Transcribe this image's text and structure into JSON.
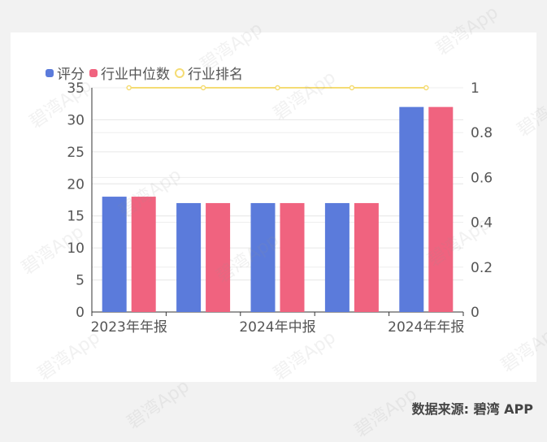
{
  "legend": [
    {
      "label": "评分",
      "color": "#5b7bdb",
      "style": "square"
    },
    {
      "label": "行业中位数",
      "color": "#f0637f",
      "style": "square"
    },
    {
      "label": "行业排名",
      "color": "#f5dc74",
      "style": "ring"
    }
  ],
  "source_text": "数据来源: 碧湾 APP",
  "watermark_text": "碧湾App",
  "chart_data": {
    "type": "bar",
    "categories": [
      "2023年年报",
      "",
      "2024年中报",
      "",
      "2024年年报"
    ],
    "x_tick_labels": [
      "2023年年报",
      "2024年中报",
      "2024年年报"
    ],
    "series": [
      {
        "name": "评分",
        "type": "bar",
        "axis": "left",
        "color": "#5b7bdb",
        "values": [
          18,
          17,
          17,
          17,
          32
        ]
      },
      {
        "name": "行业中位数",
        "type": "bar",
        "axis": "left",
        "color": "#f0637f",
        "values": [
          18,
          17,
          17,
          17,
          32
        ]
      },
      {
        "name": "行业排名",
        "type": "line",
        "axis": "right",
        "color": "#f5dc74",
        "values": [
          1,
          1,
          1,
          1,
          1
        ]
      }
    ],
    "y_left": {
      "min": 0,
      "max": 35,
      "ticks": [
        0,
        5,
        10,
        15,
        20,
        25,
        30,
        35
      ]
    },
    "y_right": {
      "min": 0,
      "max": 1,
      "ticks": [
        "0",
        "0.2",
        "0.4",
        "0.6",
        "0.8",
        "1"
      ]
    },
    "grid": true,
    "legend_position": "top-left"
  }
}
